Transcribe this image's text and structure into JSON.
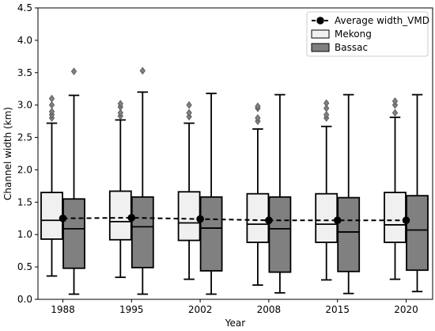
{
  "chart_data": {
    "type": "box",
    "xlabel": "Year",
    "ylabel": "Channel width (km)",
    "ylim": [
      0.0,
      4.5
    ],
    "yticks": [
      "0.0",
      "0.5",
      "1.0",
      "1.5",
      "2.0",
      "2.5",
      "3.0",
      "3.5",
      "4.0",
      "4.5"
    ],
    "categories": [
      "1988",
      "1995",
      "2002",
      "2008",
      "2015",
      "2020"
    ],
    "legend_position": "top-right",
    "series": [
      {
        "name": "Mekong",
        "color": "#f0f0f0",
        "boxes": [
          {
            "whisker_low": 0.36,
            "q1": 0.93,
            "median": 1.22,
            "q3": 1.65,
            "whisker_high": 2.72,
            "outliers": [
              2.8,
              2.85,
              2.9,
              3.0,
              3.1
            ]
          },
          {
            "whisker_low": 0.34,
            "q1": 0.92,
            "median": 1.2,
            "q3": 1.67,
            "whisker_high": 2.77,
            "outliers": [
              2.83,
              2.88,
              2.97,
              3.02
            ]
          },
          {
            "whisker_low": 0.31,
            "q1": 0.91,
            "median": 1.18,
            "q3": 1.66,
            "whisker_high": 2.72,
            "outliers": [
              2.82,
              2.88,
              3.0
            ]
          },
          {
            "whisker_low": 0.22,
            "q1": 0.88,
            "median": 1.16,
            "q3": 1.63,
            "whisker_high": 2.63,
            "outliers": [
              2.75,
              2.8,
              2.95,
              2.98
            ]
          },
          {
            "whisker_low": 0.3,
            "q1": 0.88,
            "median": 1.16,
            "q3": 1.63,
            "whisker_high": 2.67,
            "outliers": [
              2.8,
              2.85,
              2.95,
              3.03
            ]
          },
          {
            "whisker_low": 0.31,
            "q1": 0.88,
            "median": 1.15,
            "q3": 1.65,
            "whisker_high": 2.81,
            "outliers": [
              2.88,
              3.0,
              3.06
            ]
          }
        ]
      },
      {
        "name": "Bassac",
        "color": "#808080",
        "boxes": [
          {
            "whisker_low": 0.08,
            "q1": 0.48,
            "median": 1.09,
            "q3": 1.55,
            "whisker_high": 3.15,
            "outliers": [
              3.52
            ]
          },
          {
            "whisker_low": 0.08,
            "q1": 0.49,
            "median": 1.12,
            "q3": 1.58,
            "whisker_high": 3.2,
            "outliers": [
              3.53
            ]
          },
          {
            "whisker_low": 0.08,
            "q1": 0.44,
            "median": 1.1,
            "q3": 1.58,
            "whisker_high": 3.18,
            "outliers": []
          },
          {
            "whisker_low": 0.1,
            "q1": 0.42,
            "median": 1.09,
            "q3": 1.58,
            "whisker_high": 3.16,
            "outliers": []
          },
          {
            "whisker_low": 0.09,
            "q1": 0.43,
            "median": 1.04,
            "q3": 1.57,
            "whisker_high": 3.16,
            "outliers": []
          },
          {
            "whisker_low": 0.12,
            "q1": 0.45,
            "median": 1.07,
            "q3": 1.6,
            "whisker_high": 3.16,
            "outliers": []
          }
        ]
      }
    ],
    "line": {
      "name": "Average width_VMD",
      "style": "dashed",
      "color": "#000000",
      "values": [
        1.25,
        1.26,
        1.24,
        1.22,
        1.22,
        1.22
      ]
    }
  }
}
